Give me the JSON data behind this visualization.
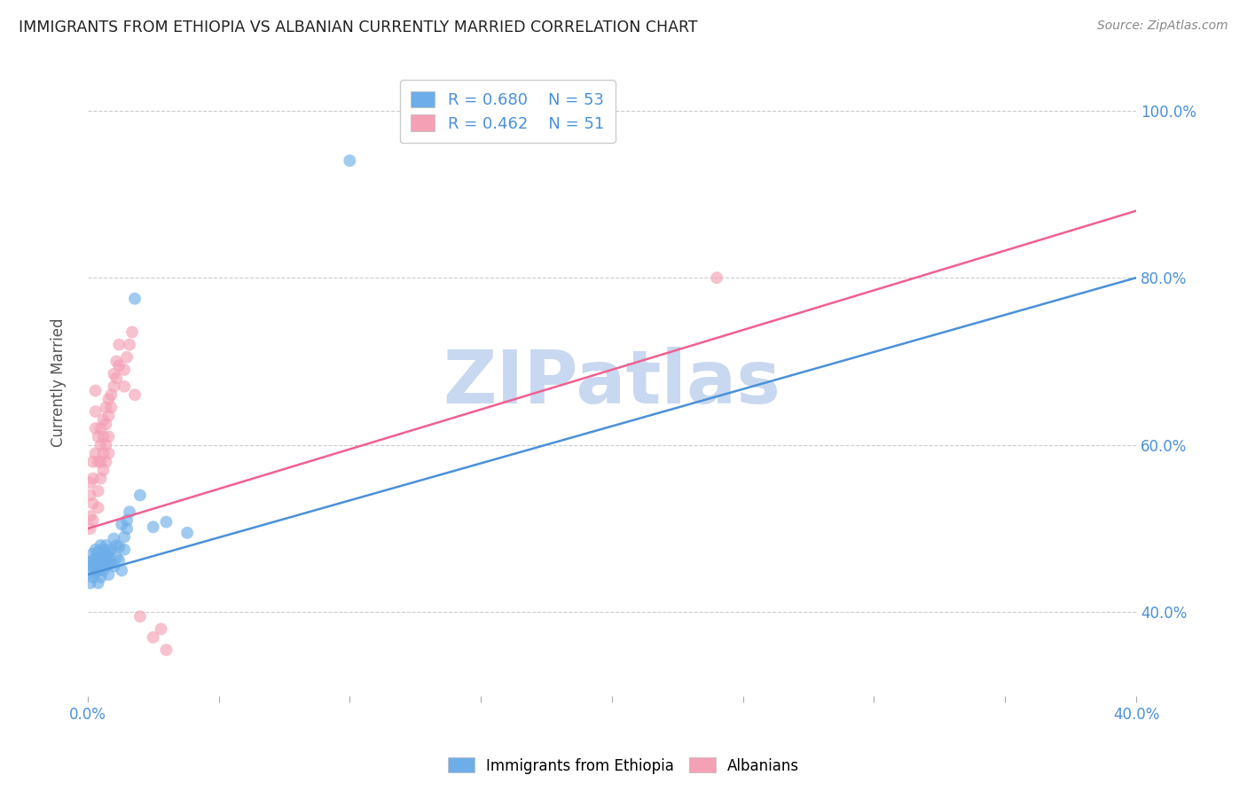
{
  "title": "IMMIGRANTS FROM ETHIOPIA VS ALBANIAN CURRENTLY MARRIED CORRELATION CHART",
  "source": "Source: ZipAtlas.com",
  "ylabel": "Currently Married",
  "ytick_values": [
    0.4,
    0.6,
    0.8,
    1.0
  ],
  "xlim": [
    0.0,
    0.4
  ],
  "ylim": [
    0.3,
    1.05
  ],
  "legend1_r": "R = 0.680",
  "legend1_n": "N = 53",
  "legend2_r": "R = 0.462",
  "legend2_n": "N = 51",
  "blue_color": "#6daee8",
  "pink_color": "#f4a0b5",
  "blue_line_color": "#4a90d9",
  "pink_line_color": "#f06090",
  "watermark": "ZIPatlas",
  "watermark_color": "#c8d8f0",
  "blue_scatter": [
    [
      0.001,
      0.455
    ],
    [
      0.001,
      0.46
    ],
    [
      0.001,
      0.448
    ],
    [
      0.001,
      0.435
    ],
    [
      0.002,
      0.462
    ],
    [
      0.002,
      0.455
    ],
    [
      0.002,
      0.47
    ],
    [
      0.002,
      0.442
    ],
    [
      0.003,
      0.475
    ],
    [
      0.003,
      0.458
    ],
    [
      0.003,
      0.448
    ],
    [
      0.003,
      0.465
    ],
    [
      0.004,
      0.46
    ],
    [
      0.004,
      0.45
    ],
    [
      0.004,
      0.472
    ],
    [
      0.004,
      0.435
    ],
    [
      0.005,
      0.468
    ],
    [
      0.005,
      0.455
    ],
    [
      0.005,
      0.48
    ],
    [
      0.005,
      0.442
    ],
    [
      0.006,
      0.458
    ],
    [
      0.006,
      0.465
    ],
    [
      0.006,
      0.45
    ],
    [
      0.006,
      0.475
    ],
    [
      0.007,
      0.462
    ],
    [
      0.007,
      0.47
    ],
    [
      0.007,
      0.455
    ],
    [
      0.007,
      0.48
    ],
    [
      0.008,
      0.468
    ],
    [
      0.008,
      0.445
    ],
    [
      0.008,
      0.472
    ],
    [
      0.008,
      0.458
    ],
    [
      0.009,
      0.475
    ],
    [
      0.009,
      0.46
    ],
    [
      0.01,
      0.488
    ],
    [
      0.01,
      0.455
    ],
    [
      0.011,
      0.48
    ],
    [
      0.011,
      0.465
    ],
    [
      0.012,
      0.478
    ],
    [
      0.012,
      0.462
    ],
    [
      0.013,
      0.505
    ],
    [
      0.013,
      0.45
    ],
    [
      0.014,
      0.49
    ],
    [
      0.014,
      0.475
    ],
    [
      0.015,
      0.5
    ],
    [
      0.015,
      0.51
    ],
    [
      0.016,
      0.52
    ],
    [
      0.018,
      0.775
    ],
    [
      0.02,
      0.54
    ],
    [
      0.025,
      0.502
    ],
    [
      0.03,
      0.508
    ],
    [
      0.038,
      0.495
    ],
    [
      0.1,
      0.94
    ]
  ],
  "pink_scatter": [
    [
      0.001,
      0.5
    ],
    [
      0.001,
      0.515
    ],
    [
      0.001,
      0.54
    ],
    [
      0.001,
      0.555
    ],
    [
      0.002,
      0.51
    ],
    [
      0.002,
      0.53
    ],
    [
      0.002,
      0.56
    ],
    [
      0.002,
      0.58
    ],
    [
      0.003,
      0.59
    ],
    [
      0.003,
      0.62
    ],
    [
      0.003,
      0.64
    ],
    [
      0.003,
      0.665
    ],
    [
      0.004,
      0.58
    ],
    [
      0.004,
      0.61
    ],
    [
      0.004,
      0.545
    ],
    [
      0.004,
      0.525
    ],
    [
      0.005,
      0.6
    ],
    [
      0.005,
      0.62
    ],
    [
      0.005,
      0.58
    ],
    [
      0.005,
      0.56
    ],
    [
      0.006,
      0.61
    ],
    [
      0.006,
      0.63
    ],
    [
      0.006,
      0.59
    ],
    [
      0.006,
      0.57
    ],
    [
      0.007,
      0.625
    ],
    [
      0.007,
      0.645
    ],
    [
      0.007,
      0.6
    ],
    [
      0.007,
      0.58
    ],
    [
      0.008,
      0.635
    ],
    [
      0.008,
      0.655
    ],
    [
      0.008,
      0.61
    ],
    [
      0.008,
      0.59
    ],
    [
      0.009,
      0.645
    ],
    [
      0.009,
      0.66
    ],
    [
      0.01,
      0.67
    ],
    [
      0.01,
      0.685
    ],
    [
      0.011,
      0.7
    ],
    [
      0.011,
      0.68
    ],
    [
      0.012,
      0.72
    ],
    [
      0.012,
      0.695
    ],
    [
      0.014,
      0.69
    ],
    [
      0.014,
      0.67
    ],
    [
      0.015,
      0.705
    ],
    [
      0.016,
      0.72
    ],
    [
      0.017,
      0.735
    ],
    [
      0.018,
      0.66
    ],
    [
      0.02,
      0.395
    ],
    [
      0.025,
      0.37
    ],
    [
      0.028,
      0.38
    ],
    [
      0.03,
      0.355
    ],
    [
      0.24,
      0.8
    ]
  ]
}
